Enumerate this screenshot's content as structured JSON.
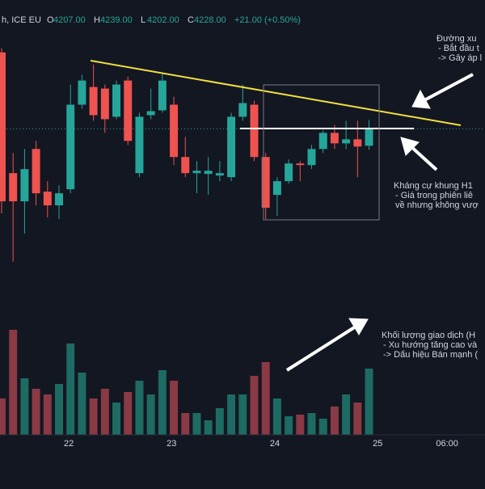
{
  "header": {
    "symbol": "h, ICE EU",
    "ohlc": [
      {
        "label": "O",
        "value": "4207.00"
      },
      {
        "label": "H",
        "value": "4239.00"
      },
      {
        "label": "L",
        "value": "4202.00"
      },
      {
        "label": "C",
        "value": "4228.00"
      }
    ],
    "change": "+21.00 (+0.50%)"
  },
  "annotations": [
    {
      "lines": [
        "Đường xu",
        "- Bắt đầu t",
        "-> Gây áp l"
      ]
    },
    {
      "lines": [
        "Kháng cự khung H1",
        "- Giá trong phiên liê",
        "về nhưng không vượ"
      ]
    },
    {
      "lines": [
        "Khối lượng giao dịch (H",
        "- Xu hướng tăng cao và",
        "-> Dấu hiệu Bán mạnh ("
      ]
    }
  ],
  "chart_data": {
    "type": "candlestick",
    "open": [
      4323,
      4173,
      4138,
      4203,
      4150,
      4133,
      4153,
      4258,
      4280,
      4278,
      4243,
      4288,
      4173,
      4245,
      4251,
      4258,
      4193,
      4173,
      4172,
      4170,
      4168,
      4243,
      4258,
      4193,
      4146,
      4163,
      4185,
      4183,
      4203,
      4223,
      4210,
      4215,
      4207
    ],
    "high": [
      4328,
      4198,
      4203,
      4213,
      4163,
      4158,
      4283,
      4295,
      4308,
      4283,
      4288,
      4293,
      4248,
      4278,
      4298,
      4268,
      4218,
      4188,
      4193,
      4188,
      4248,
      4283,
      4263,
      4198,
      4168,
      4190,
      4188,
      4208,
      4226,
      4233,
      4238,
      4238,
      4239
    ],
    "low": [
      4123,
      4063,
      4098,
      4133,
      4118,
      4116,
      4148,
      4253,
      4238,
      4223,
      4240,
      4208,
      4168,
      4240,
      4248,
      4183,
      4168,
      4148,
      4146,
      4163,
      4163,
      4238,
      4188,
      4116,
      4120,
      4160,
      4163,
      4178,
      4198,
      4203,
      4203,
      4168,
      4202
    ],
    "close": [
      4138,
      4138,
      4178,
      4148,
      4133,
      4148,
      4258,
      4288,
      4245,
      4240,
      4283,
      4213,
      4243,
      4250,
      4288,
      4193,
      4173,
      4176,
      4176,
      4173,
      4243,
      4260,
      4193,
      4130,
      4163,
      4185,
      4183,
      4203,
      4223,
      4210,
      4215,
      4206,
      4228
    ],
    "volume": [
      45,
      130,
      70,
      57,
      50,
      63,
      113,
      77,
      45,
      57,
      40,
      53,
      67,
      50,
      80,
      67,
      27,
      27,
      18,
      33,
      50,
      50,
      73,
      90,
      45,
      23,
      25,
      27,
      20,
      35,
      50,
      40,
      82
    ],
    "up_color": "#26a69a",
    "down_color": "#ef5350",
    "volume_up_color": "#1d6b62",
    "volume_down_color": "#8a3a45",
    "ylim": [
      3848,
      4388
    ],
    "y2lim": [
      0,
      538
    ],
    "xlim": [
      -0.14,
      42.1
    ],
    "xticks": [
      {
        "value": 5.85,
        "label": "22"
      },
      {
        "value": 14.8,
        "label": "23"
      },
      {
        "value": 23.8,
        "label": "24"
      },
      {
        "value": 32.75,
        "label": "25"
      },
      {
        "value": 38.8,
        "label": "06:00"
      }
    ]
  }
}
